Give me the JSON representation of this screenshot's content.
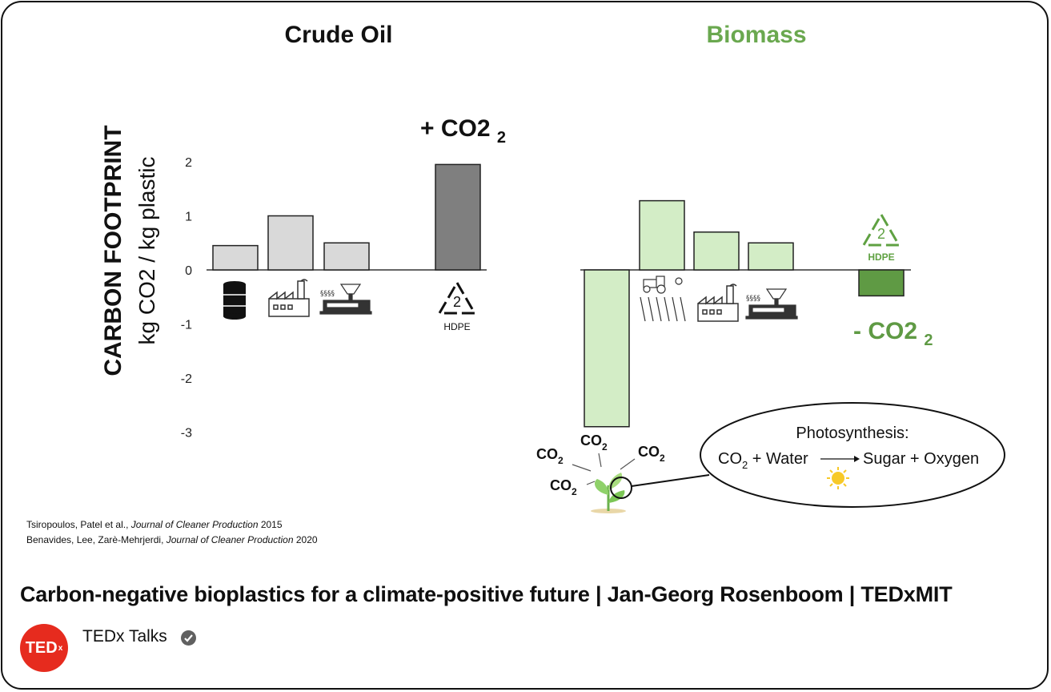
{
  "chart_data": [
    {
      "type": "bar",
      "title": "Crude Oil",
      "ylabel_bold": "CARBON FOOTPRINT",
      "ylabel": "kg CO2 / kg plastic",
      "yticks": [
        "2",
        "1",
        "0",
        "-1",
        "-2",
        "-3"
      ],
      "ylim": [
        -3,
        2
      ],
      "grid": false,
      "categories": [
        "crude-oil-extraction",
        "refining",
        "polymer-processing",
        "end-of-life"
      ],
      "values": [
        0.45,
        1.0,
        0.5,
        1.95
      ],
      "colors": [
        "#d9d9d9",
        "#d9d9d9",
        "#d9d9d9",
        "#7f7f7f"
      ],
      "annotation": "+ CO2"
    },
    {
      "type": "bar",
      "title": "Biomass",
      "title_color": "#6aa84f",
      "categories": [
        "photosynthesis-uptake",
        "agriculture",
        "refining",
        "polymer-processing",
        "net-total"
      ],
      "values": [
        -2.9,
        1.28,
        0.7,
        0.5,
        -0.48
      ],
      "colors": [
        "#d3edc6",
        "#d3edc6",
        "#d3edc6",
        "#d3edc6",
        "#5f9a44"
      ],
      "annotation": "- CO2",
      "annotation_color": "#5f9a44"
    }
  ],
  "recycle_label": "HDPE",
  "recycle_number": "2",
  "co2_text": "CO",
  "co2_subscript": "2",
  "photosynthesis": {
    "title": "Photosynthesis:",
    "left": "CO",
    "left_sub": "2",
    "left_rest": " + Water",
    "right": "Sugar + Oxygen"
  },
  "references": [
    {
      "authors": "Tsiropoulos, Patel et al., ",
      "journal": "Journal of Cleaner Production",
      "year": " 2015"
    },
    {
      "authors": "Benavides, Lee, Zarè-Mehrjerdi, ",
      "journal": "Journal of Cleaner Production",
      "year": " 2020"
    }
  ],
  "video": {
    "title": "Carbon-negative bioplastics for a climate-positive future | Jan-Georg Rosenboom | TEDxMIT",
    "channel": "TEDx Talks",
    "avatar_text": "TED",
    "avatar_sup": "x",
    "verified_icon": "check-circle-icon"
  }
}
